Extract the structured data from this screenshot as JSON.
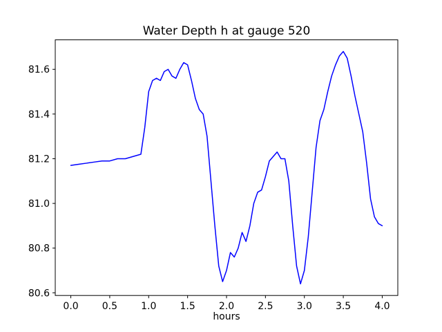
{
  "figure": {
    "background": "#ffffff",
    "frame_color": "#000000"
  },
  "chart_data": {
    "type": "line",
    "title": "Water Depth h at gauge 520",
    "xlabel": "hours",
    "ylabel": "",
    "xlim": [
      -0.2,
      4.2
    ],
    "ylim": [
      80.588,
      81.732
    ],
    "xticks": [
      0.0,
      0.5,
      1.0,
      1.5,
      2.0,
      2.5,
      3.0,
      3.5,
      4.0
    ],
    "xtick_labels": [
      "0.0",
      "0.5",
      "1.0",
      "1.5",
      "2.0",
      "2.5",
      "3.0",
      "3.5",
      "4.0"
    ],
    "yticks": [
      80.6,
      80.8,
      81.0,
      81.2,
      81.4,
      81.6
    ],
    "ytick_labels": [
      "80.6",
      "80.8",
      "81.0",
      "81.2",
      "81.4",
      "81.6"
    ],
    "grid": false,
    "legend": false,
    "line_color": "#0000ff",
    "line_width": 1.5,
    "series": [
      {
        "name": "water-depth-h",
        "x": [
          0.0,
          0.1,
          0.2,
          0.3,
          0.4,
          0.5,
          0.6,
          0.7,
          0.8,
          0.85,
          0.9,
          0.95,
          1.0,
          1.05,
          1.1,
          1.15,
          1.2,
          1.25,
          1.3,
          1.35,
          1.4,
          1.45,
          1.5,
          1.55,
          1.6,
          1.65,
          1.7,
          1.75,
          1.8,
          1.85,
          1.9,
          1.95,
          2.0,
          2.05,
          2.1,
          2.15,
          2.2,
          2.25,
          2.3,
          2.35,
          2.4,
          2.45,
          2.5,
          2.55,
          2.6,
          2.65,
          2.7,
          2.75,
          2.8,
          2.85,
          2.9,
          2.95,
          3.0,
          3.05,
          3.1,
          3.15,
          3.2,
          3.25,
          3.3,
          3.35,
          3.4,
          3.45,
          3.5,
          3.55,
          3.6,
          3.65,
          3.7,
          3.75,
          3.8,
          3.85,
          3.9,
          3.95,
          4.0
        ],
        "y": [
          81.17,
          81.175,
          81.18,
          81.185,
          81.19,
          81.19,
          81.2,
          81.2,
          81.21,
          81.215,
          81.22,
          81.34,
          81.5,
          81.55,
          81.56,
          81.55,
          81.59,
          81.6,
          81.57,
          81.56,
          81.6,
          81.63,
          81.62,
          81.55,
          81.47,
          81.42,
          81.4,
          81.3,
          81.1,
          80.9,
          80.72,
          80.65,
          80.7,
          80.78,
          80.76,
          80.8,
          80.87,
          80.83,
          80.9,
          81.0,
          81.05,
          81.06,
          81.12,
          81.19,
          81.21,
          81.23,
          81.2,
          81.2,
          81.1,
          80.9,
          80.72,
          80.64,
          80.7,
          80.85,
          81.05,
          81.25,
          81.37,
          81.42,
          81.5,
          81.57,
          81.62,
          81.66,
          81.68,
          81.65,
          81.57,
          81.48,
          81.4,
          81.32,
          81.18,
          81.02,
          80.94,
          80.91,
          80.9
        ]
      }
    ]
  }
}
